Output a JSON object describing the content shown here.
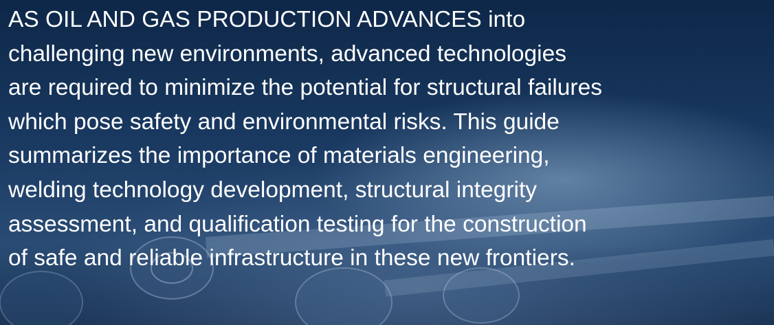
{
  "paragraph": {
    "lines": [
      "AS OIL AND GAS PRODUCTION ADVANCES into",
      "challenging new environments, advanced technologies",
      "are required to minimize the potential for structural failures",
      "which pose safety and environmental risks. This guide",
      "summarizes the importance of materials engineering,",
      "welding technology development, structural integrity",
      "assessment, and qualification testing for the construction",
      "of safe and reliable infrastructure in these new frontiers."
    ]
  }
}
